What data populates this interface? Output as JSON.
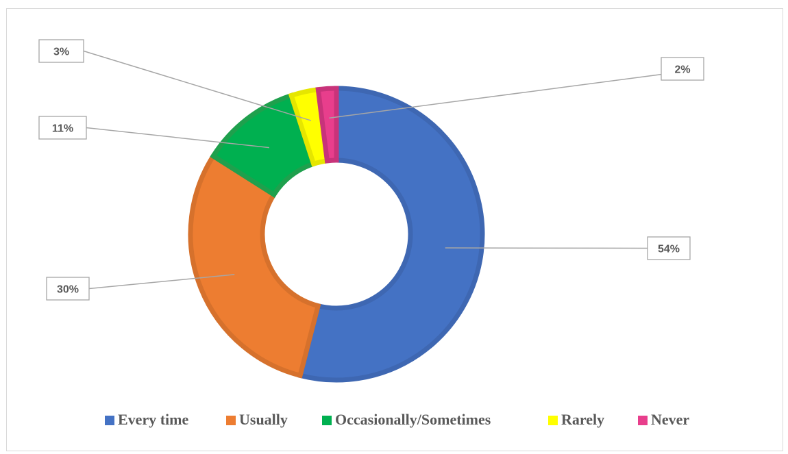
{
  "chart_data": {
    "type": "pie",
    "variant": "donut",
    "title": "",
    "categories": [
      "Every time",
      "Usually",
      "Occasionally/Sometimes",
      "Rarely",
      "Never"
    ],
    "values": [
      54,
      30,
      11,
      3,
      2
    ],
    "labels": [
      "54%",
      "30%",
      "11%",
      "3%",
      "2%"
    ],
    "colors": [
      "#4472C4",
      "#ED7D31",
      "#00B050",
      "#FFFF00",
      "#E83E8C"
    ],
    "edge_colors": [
      "#3E67B2",
      "#D6712C",
      "#1FA04D",
      "#E6E600",
      "#C8337A"
    ],
    "legend_position": "bottom",
    "legend": [
      {
        "label": "Every time"
      },
      {
        "label": "Usually"
      },
      {
        "label": "Occasionally/Sometimes"
      },
      {
        "label": "Rarely"
      },
      {
        "label": "Never"
      }
    ]
  }
}
